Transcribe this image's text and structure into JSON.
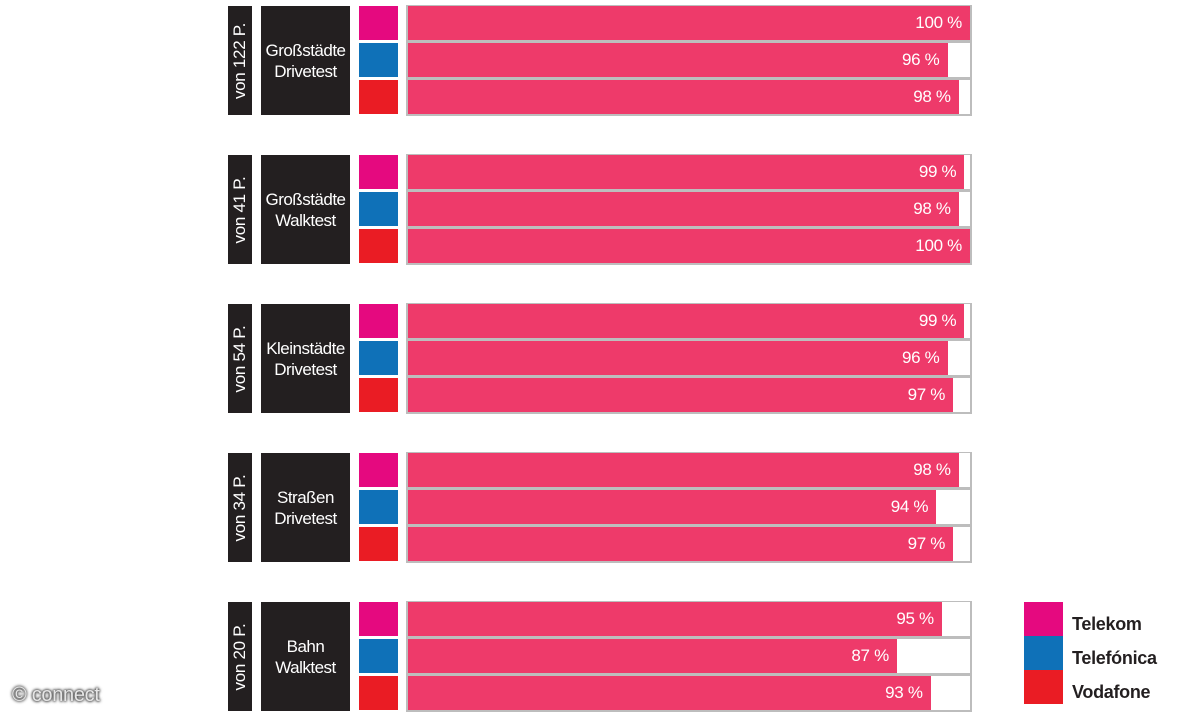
{
  "chart_data": {
    "type": "bar",
    "orientation": "horizontal",
    "title": "",
    "xlabel": "",
    "ylabel": "",
    "xlim": [
      0,
      100
    ],
    "unit": "%",
    "categories": [
      "Großstädte Drivetest",
      "Großstädte Walktest",
      "Kleinstädte Drivetest",
      "Straßen Drivetest",
      "Bahn Walktest"
    ],
    "category_points": [
      "von 122 P.",
      "von 41 P.",
      "von 54 P.",
      "von 34 P.",
      "von 20 P."
    ],
    "series": [
      {
        "name": "Telekom",
        "color": "#e5097f",
        "values": [
          100,
          99,
          99,
          98,
          95
        ]
      },
      {
        "name": "Telefónica",
        "color": "#0f71b8",
        "values": [
          96,
          98,
          96,
          94,
          87
        ]
      },
      {
        "name": "Vodafone",
        "color": "#ea1c24",
        "values": [
          98,
          100,
          97,
          97,
          93
        ]
      }
    ],
    "bar_color": "#ee3a6a",
    "legend_position": "bottom-right",
    "grid": false
  },
  "groups": [
    {
      "points": "von 122 P.",
      "line1": "Großstädte",
      "line2": "Drivetest",
      "rows": [
        {
          "operator": "Telekom",
          "value": 100,
          "label": "100 %"
        },
        {
          "operator": "Telefónica",
          "value": 96,
          "label": "96 %"
        },
        {
          "operator": "Vodafone",
          "value": 98,
          "label": "98 %"
        }
      ]
    },
    {
      "points": "von 41 P.",
      "line1": "Großstädte",
      "line2": "Walktest",
      "rows": [
        {
          "operator": "Telekom",
          "value": 99,
          "label": "99 %"
        },
        {
          "operator": "Telefónica",
          "value": 98,
          "label": "98 %"
        },
        {
          "operator": "Vodafone",
          "value": 100,
          "label": "100 %"
        }
      ]
    },
    {
      "points": "von 54 P.",
      "line1": "Kleinstädte",
      "line2": "Drivetest",
      "rows": [
        {
          "operator": "Telekom",
          "value": 99,
          "label": "99 %"
        },
        {
          "operator": "Telefónica",
          "value": 96,
          "label": "96 %"
        },
        {
          "operator": "Vodafone",
          "value": 97,
          "label": "97 %"
        }
      ]
    },
    {
      "points": "von 34 P.",
      "line1": "Straßen",
      "line2": "Drivetest",
      "rows": [
        {
          "operator": "Telekom",
          "value": 98,
          "label": "98 %"
        },
        {
          "operator": "Telefónica",
          "value": 94,
          "label": "94 %"
        },
        {
          "operator": "Vodafone",
          "value": 97,
          "label": "97 %"
        }
      ]
    },
    {
      "points": "von 20 P.",
      "line1": "Bahn",
      "line2": "Walktest",
      "rows": [
        {
          "operator": "Telekom",
          "value": 95,
          "label": "95 %"
        },
        {
          "operator": "Telefónica",
          "value": 87,
          "label": "87 %"
        },
        {
          "operator": "Vodafone",
          "value": 93,
          "label": "93 %"
        }
      ]
    }
  ],
  "legend": [
    {
      "name": "Telekom",
      "color": "#e5097f"
    },
    {
      "name": "Telefónica",
      "color": "#0f71b8"
    },
    {
      "name": "Vodafone",
      "color": "#ea1c24"
    }
  ],
  "colors": {
    "telekom": "#e5097f",
    "telefonica": "#0f71b8",
    "vodafone": "#ea1c24",
    "bar": "#ee3a6a",
    "label_box": "#231f20",
    "track_border": "#bdbdbd"
  },
  "watermark": "© connect"
}
